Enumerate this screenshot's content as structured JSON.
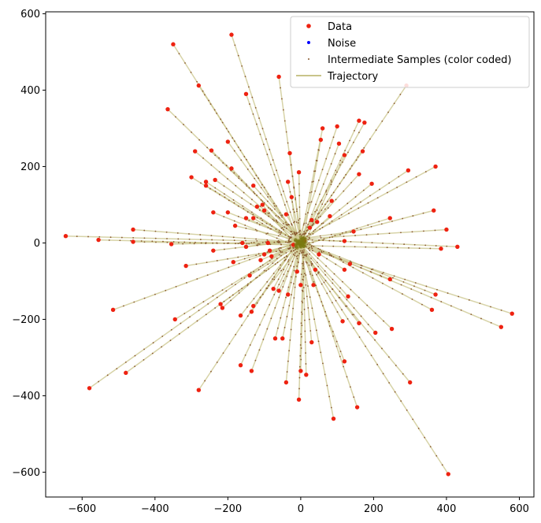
{
  "chart_data": {
    "type": "scatter",
    "xlim": [
      -700,
      640
    ],
    "ylim": [
      -665,
      605
    ],
    "x_ticks": [
      "−600",
      "−400",
      "−200",
      "0",
      "200",
      "400",
      "600"
    ],
    "x_tick_values": [
      -600,
      -400,
      -200,
      0,
      200,
      400,
      600
    ],
    "y_ticks": [
      "−600",
      "−400",
      "−200",
      "0",
      "200",
      "400",
      "600"
    ],
    "y_tick_values": [
      -600,
      -400,
      -200,
      0,
      200,
      400,
      600
    ],
    "grid": false,
    "legend_position": "top-right",
    "legend": [
      {
        "label": "Data",
        "color": "#ee2211",
        "marker": "dot"
      },
      {
        "label": "Noise",
        "color": "#0000ff",
        "marker": "dot"
      },
      {
        "label": "Intermediate Samples (color coded)",
        "color": "#8a5a30",
        "marker": "small-dot"
      },
      {
        "label": "Trajectory",
        "color": "#c9c48a",
        "marker": "line"
      }
    ],
    "colors": {
      "data": "#ee2211",
      "noise": "#0000ff",
      "intermediate": "#8a5a30",
      "trajectory": "#c9c48a",
      "center_cluster": "#7a7a10"
    },
    "noise_center": [
      0,
      0
    ],
    "data_points": [
      [
        -190,
        545
      ],
      [
        -350,
        520
      ],
      [
        -280,
        412
      ],
      [
        290,
        412
      ],
      [
        -60,
        435
      ],
      [
        -150,
        390
      ],
      [
        -365,
        350
      ],
      [
        -290,
        240
      ],
      [
        -245,
        242
      ],
      [
        -200,
        265
      ],
      [
        -190,
        195
      ],
      [
        -300,
        172
      ],
      [
        -260,
        160
      ],
      [
        -235,
        165
      ],
      [
        -260,
        150
      ],
      [
        -200,
        80
      ],
      [
        -240,
        80
      ],
      [
        -180,
        45
      ],
      [
        -150,
        65
      ],
      [
        -130,
        65
      ],
      [
        -120,
        95
      ],
      [
        -105,
        100
      ],
      [
        -100,
        85
      ],
      [
        -160,
        0
      ],
      [
        -185,
        -50
      ],
      [
        -220,
        -160
      ],
      [
        -215,
        -170
      ],
      [
        -165,
        -190
      ],
      [
        -135,
        -180
      ],
      [
        -130,
        -165
      ],
      [
        -140,
        -85
      ],
      [
        -110,
        -45
      ],
      [
        -100,
        -30
      ],
      [
        -85,
        -20
      ],
      [
        -75,
        -120
      ],
      [
        -50,
        -250
      ],
      [
        -40,
        -365
      ],
      [
        -5,
        -410
      ],
      [
        0,
        -335
      ],
      [
        15,
        -345
      ],
      [
        30,
        -260
      ],
      [
        90,
        -460
      ],
      [
        120,
        -310
      ],
      [
        155,
        -430
      ],
      [
        160,
        -210
      ],
      [
        205,
        -235
      ],
      [
        250,
        -225
      ],
      [
        300,
        -365
      ],
      [
        405,
        -605
      ],
      [
        550,
        -220
      ],
      [
        580,
        -185
      ],
      [
        360,
        -175
      ],
      [
        370,
        -135
      ],
      [
        245,
        -95
      ],
      [
        245,
        65
      ],
      [
        365,
        85
      ],
      [
        400,
        35
      ],
      [
        430,
        -10
      ],
      [
        385,
        -15
      ],
      [
        295,
        190
      ],
      [
        370,
        200
      ],
      [
        195,
        155
      ],
      [
        160,
        180
      ],
      [
        175,
        315
      ],
      [
        160,
        320
      ],
      [
        145,
        30
      ],
      [
        120,
        5
      ],
      [
        135,
        -55
      ],
      [
        120,
        -70
      ],
      [
        100,
        305
      ],
      [
        105,
        260
      ],
      [
        60,
        300
      ],
      [
        55,
        270
      ],
      [
        85,
        110
      ],
      [
        80,
        70
      ],
      [
        45,
        55
      ],
      [
        30,
        60
      ],
      [
        25,
        40
      ],
      [
        -5,
        185
      ],
      [
        -30,
        235
      ],
      [
        -35,
        160
      ],
      [
        -25,
        120
      ],
      [
        -40,
        75
      ],
      [
        -20,
        -5
      ],
      [
        -35,
        -135
      ],
      [
        0,
        -110
      ],
      [
        -10,
        -75
      ],
      [
        40,
        -70
      ],
      [
        115,
        -205
      ],
      [
        130,
        -140
      ],
      [
        170,
        240
      ],
      [
        120,
        230
      ],
      [
        -645,
        18
      ],
      [
        -555,
        8
      ],
      [
        -460,
        35
      ],
      [
        -460,
        3
      ],
      [
        -355,
        -3
      ],
      [
        -315,
        -60
      ],
      [
        -240,
        -20
      ],
      [
        -515,
        -175
      ],
      [
        -345,
        -200
      ],
      [
        -580,
        -380
      ],
      [
        -480,
        -340
      ],
      [
        -280,
        -385
      ],
      [
        -165,
        -320
      ],
      [
        -135,
        -335
      ],
      [
        -70,
        -250
      ],
      [
        -60,
        -125
      ],
      [
        -130,
        150
      ],
      [
        -90,
        0
      ],
      [
        -80,
        -35
      ],
      [
        10,
        5
      ],
      [
        35,
        -110
      ],
      [
        50,
        -30
      ],
      [
        -150,
        -10
      ]
    ]
  }
}
